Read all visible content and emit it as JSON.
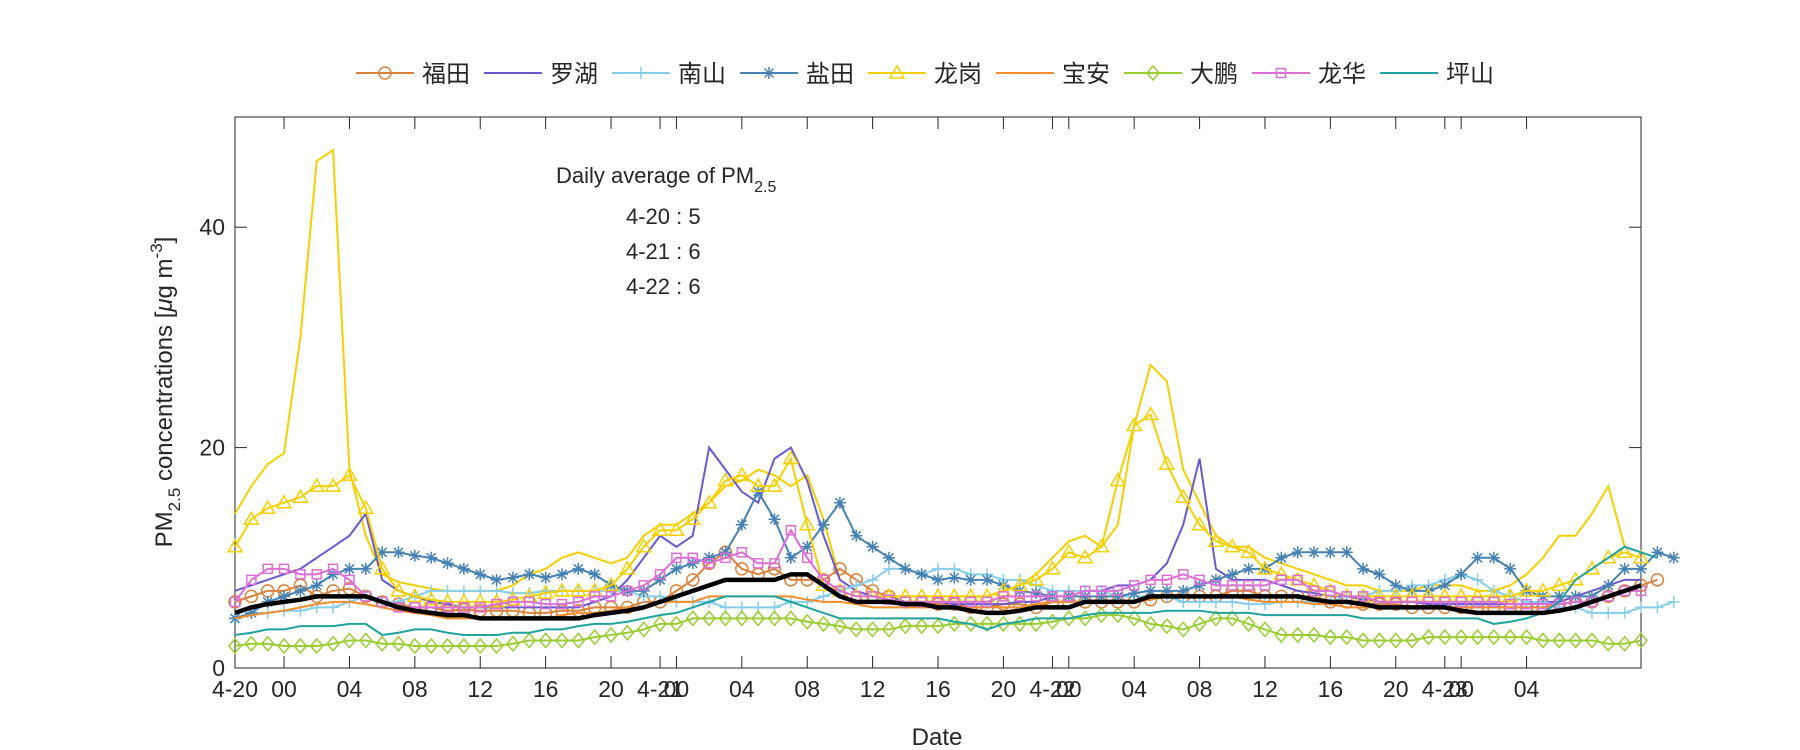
{
  "chart_data": {
    "type": "line",
    "xlabel": "Date",
    "ylabel": {
      "main": "PM",
      "sub": "2.5",
      "rest": " concentrations [",
      "mu": "μ",
      "unit": "g m",
      "sup": "-3",
      "end": "]"
    },
    "ylim": [
      0,
      50
    ],
    "yticks": [
      0,
      20,
      40
    ],
    "xlim": [
      0,
      76
    ],
    "xticks": [
      {
        "x": 0,
        "label": "4-20"
      },
      {
        "x": 3,
        "label": "00"
      },
      {
        "x": 7,
        "label": "04"
      },
      {
        "x": 11,
        "label": "08"
      },
      {
        "x": 15,
        "label": "12"
      },
      {
        "x": 19,
        "label": "16"
      },
      {
        "x": 23,
        "label": "20"
      },
      {
        "x": 26,
        "label": "4-21"
      },
      {
        "x": 27,
        "label": "00"
      },
      {
        "x": 31,
        "label": "04"
      },
      {
        "x": 35,
        "label": "08"
      },
      {
        "x": 39,
        "label": "12"
      },
      {
        "x": 43,
        "label": "16"
      },
      {
        "x": 47,
        "label": "20"
      },
      {
        "x": 50,
        "label": "4-22"
      },
      {
        "x": 51,
        "label": "00"
      },
      {
        "x": 55,
        "label": "04"
      },
      {
        "x": 59,
        "label": "08"
      },
      {
        "x": 63,
        "label": "12"
      },
      {
        "x": 67,
        "label": "16"
      },
      {
        "x": 71,
        "label": "20"
      },
      {
        "x": 74,
        "label": "4-23"
      },
      {
        "x": 75,
        "label": "00"
      },
      {
        "x": 79,
        "label": "04"
      }
    ],
    "grid": false,
    "legend_position": "top",
    "annotation": {
      "title": "Daily average of PM",
      "title_sub": "2.5",
      "lines": [
        "4-20 : 5",
        "4-21 : 6",
        "4-22 : 6"
      ]
    },
    "series": [
      {
        "name": "福田",
        "color": "#D9823B",
        "marker": "circle",
        "values": [
          6,
          6.5,
          7,
          7,
          7.5,
          6.5,
          7,
          7.2,
          6.5,
          6,
          5.8,
          5.5,
          5.5,
          5.2,
          5.3,
          5.2,
          5.2,
          5.2,
          5,
          5,
          5.2,
          5.2,
          5.5,
          5.5,
          5.5,
          6,
          6,
          7,
          8,
          9.5,
          10.5,
          9,
          8.5,
          9,
          8,
          8,
          8,
          9,
          8,
          7,
          6.5,
          6,
          6,
          5.8,
          5.8,
          5.5,
          5.5,
          5.8,
          5.8,
          5.5,
          6,
          6,
          6,
          6,
          6,
          6,
          6.2,
          6.5,
          6.5,
          6.5,
          6.5,
          7,
          7,
          6.5,
          6.5,
          6.5,
          6.5,
          6,
          6,
          5.8,
          5.8,
          5.8,
          5.5,
          5.5,
          5.5,
          5.5,
          5.5,
          5.5,
          5.5,
          5.5,
          5.5,
          5.8,
          6,
          6,
          6.5,
          7,
          7.5,
          8
        ]
      },
      {
        "name": "罗湖",
        "color": "#6A5ACD",
        "marker": "none",
        "values": [
          7,
          7.5,
          8,
          8.5,
          9,
          10,
          11,
          12,
          14,
          8,
          7,
          6.5,
          6,
          5.8,
          5.5,
          5.5,
          5.5,
          5.5,
          5.5,
          5.5,
          5.5,
          5.5,
          6,
          6.5,
          8,
          10,
          12,
          11,
          12,
          20,
          18,
          16,
          15,
          19,
          20,
          17,
          12,
          8,
          7,
          6.5,
          6.5,
          6,
          6,
          6,
          5.8,
          5.8,
          5.8,
          5.8,
          6,
          6,
          6.5,
          6.5,
          7,
          7,
          7.5,
          7.5,
          8,
          9.5,
          13,
          19,
          9,
          8,
          8,
          8,
          7.5,
          7,
          6.8,
          6.5,
          6.5,
          6.2,
          6,
          6,
          6,
          5.8,
          5.8,
          5.8,
          5.8,
          5.8,
          5.8,
          5.8,
          6,
          6,
          6.5,
          7,
          7.5,
          8,
          8
        ]
      },
      {
        "name": "南山",
        "color": "#87CEEB",
        "marker": "plus",
        "values": [
          4.5,
          5,
          5,
          5.2,
          5.2,
          5.5,
          5.5,
          6,
          6.5,
          6,
          6,
          6.5,
          7,
          7,
          7,
          7,
          7,
          6.8,
          6.8,
          7,
          7,
          7,
          7,
          7,
          7,
          6.5,
          6.5,
          6,
          6,
          6,
          5.5,
          5.5,
          5.5,
          5.5,
          6,
          6,
          6.5,
          7,
          7.5,
          8,
          9,
          9,
          8.5,
          9,
          9,
          8.5,
          8.5,
          8,
          8,
          7.5,
          7,
          7,
          7,
          7,
          6.5,
          6.5,
          6.5,
          6.5,
          6,
          6,
          6,
          6,
          5.8,
          5.8,
          6,
          6,
          6,
          6,
          6.5,
          6.5,
          7,
          7,
          7.5,
          7.5,
          8,
          8.5,
          8,
          7,
          6.5,
          6,
          6,
          5.5,
          5.5,
          5,
          5,
          5,
          5.5,
          5.5,
          6
        ]
      },
      {
        "name": "盐田",
        "color": "#4682B4",
        "marker": "asterisk",
        "values": [
          4.5,
          5,
          6,
          6.5,
          7,
          7.5,
          8.5,
          9,
          9,
          10.5,
          10.5,
          10.2,
          10,
          9.5,
          9,
          8.5,
          8,
          8.2,
          8.5,
          8.2,
          8.5,
          9,
          8.5,
          7.5,
          7,
          7,
          8,
          9,
          9.5,
          10,
          10.5,
          13,
          16,
          13.5,
          10,
          11,
          13,
          15,
          12,
          11,
          10,
          9,
          8.5,
          8,
          8.2,
          8,
          8,
          7.5,
          7,
          6.8,
          6.5,
          6.5,
          6.5,
          6.5,
          6.5,
          6.8,
          7,
          7,
          7,
          7.5,
          8,
          8.5,
          9,
          9,
          10,
          10.5,
          10.5,
          10.5,
          10.5,
          9,
          8.5,
          7.5,
          7,
          7,
          7.5,
          8.5,
          10,
          10,
          9,
          7,
          6.5,
          6.5,
          6.5,
          6.5,
          7.5,
          9,
          9,
          10.5,
          10
        ]
      },
      {
        "name": "龙岗",
        "color": "#F5D000",
        "marker": "triangle",
        "values": [
          11,
          13.5,
          14.5,
          15,
          15.5,
          16.5,
          16.5,
          17.5,
          14.5,
          9,
          7,
          6.5,
          6.2,
          6,
          6,
          6,
          6,
          6.2,
          6.5,
          6.8,
          7,
          7,
          7,
          7.5,
          9,
          11,
          12.5,
          12.5,
          13.5,
          15,
          17,
          17.5,
          16.5,
          16.5,
          19,
          13,
          7.5,
          7,
          6.5,
          6.5,
          6.5,
          6.5,
          6.5,
          6.5,
          6.5,
          6.5,
          6.5,
          7,
          7.5,
          8,
          9,
          10.5,
          10,
          11,
          17,
          22,
          23,
          18.5,
          15.5,
          13,
          11.5,
          11,
          10.5,
          9,
          8.5,
          8,
          7.5,
          7,
          6.5,
          6.5,
          6.5,
          6.5,
          6.5,
          6.5,
          6.5,
          6.5,
          6.5,
          6.5,
          6.5,
          7,
          7,
          7.5,
          8,
          9,
          10,
          10.5,
          10
        ]
      },
      {
        "name": "宝安",
        "color": "#F28E2B",
        "marker": "none",
        "values": [
          4.5,
          4.8,
          5,
          5.2,
          5.5,
          5.8,
          6,
          6,
          5.8,
          5.5,
          5.2,
          5,
          4.8,
          4.5,
          4.5,
          4.5,
          4.5,
          4.5,
          4.5,
          4.5,
          4.8,
          5,
          5,
          5.2,
          5.5,
          5.5,
          6,
          6,
          6,
          6.5,
          6.5,
          6.5,
          6.5,
          6.5,
          6.5,
          6.2,
          6,
          6,
          5.8,
          5.5,
          5.5,
          5.5,
          5.5,
          5.5,
          5.5,
          5.5,
          5.5,
          5.5,
          5.5,
          5.8,
          6,
          6,
          6,
          6,
          6,
          6,
          6.2,
          6.5,
          6.5,
          6.5,
          6.5,
          6.5,
          6.2,
          6,
          6,
          6,
          5.8,
          5.8,
          5.5,
          5.5,
          5.5,
          5.5,
          5.5,
          5.5,
          5.5,
          5.5,
          5.5,
          5.5,
          5.5,
          5.5,
          5.5,
          5.8,
          6,
          6,
          6.5,
          7,
          7.5
        ]
      },
      {
        "name": "大鹏",
        "color": "#9ACD32",
        "marker": "diamond",
        "values": [
          2,
          2.2,
          2.2,
          2,
          2,
          2,
          2.2,
          2.5,
          2.5,
          2.2,
          2.2,
          2,
          2,
          2,
          2,
          2,
          2,
          2.2,
          2.5,
          2.5,
          2.5,
          2.5,
          2.8,
          3,
          3.2,
          3.5,
          4,
          4,
          4.5,
          4.5,
          4.5,
          4.5,
          4.5,
          4.5,
          4.5,
          4.2,
          4,
          3.8,
          3.5,
          3.5,
          3.5,
          3.8,
          3.8,
          3.8,
          4,
          4,
          4,
          4,
          4,
          4,
          4.2,
          4.5,
          4.5,
          4.8,
          4.8,
          4.5,
          4,
          3.8,
          3.5,
          4,
          4.5,
          4.5,
          4,
          3.5,
          3,
          3,
          3,
          2.8,
          2.8,
          2.5,
          2.5,
          2.5,
          2.5,
          2.8,
          2.8,
          2.8,
          2.8,
          2.8,
          2.8,
          2.8,
          2.5,
          2.5,
          2.5,
          2.5,
          2.2,
          2.2,
          2.5
        ]
      },
      {
        "name": "龙华",
        "color": "#DA70D6",
        "marker": "square",
        "values": [
          6,
          8,
          9,
          9,
          8.5,
          8.5,
          9,
          8,
          6.5,
          6,
          5.5,
          5.5,
          5.5,
          5.5,
          5.5,
          5.5,
          5.8,
          6,
          6,
          5.8,
          5.8,
          6,
          6.5,
          6.5,
          7,
          7.5,
          8.5,
          10,
          10,
          9.5,
          10,
          10.5,
          9.5,
          9.5,
          12.5,
          10,
          8,
          7,
          6.5,
          6.5,
          6.2,
          6,
          6,
          6,
          6,
          6,
          6,
          6.5,
          6.5,
          6.5,
          6.5,
          6.5,
          7,
          7,
          7,
          7.5,
          8,
          8,
          8.5,
          8,
          7.5,
          7.5,
          7.5,
          7.5,
          8,
          8,
          7,
          7,
          6.5,
          6.5,
          6,
          6,
          6,
          6,
          6,
          6,
          6,
          6,
          5.8,
          5.8,
          5.8,
          5.8,
          6,
          6,
          6.5,
          7,
          7
        ]
      },
      {
        "name": "坪山",
        "color": "#20A39E",
        "marker": "none",
        "values": [
          3,
          3.2,
          3.5,
          3.5,
          3.8,
          3.8,
          3.8,
          4,
          4,
          3,
          3.2,
          3.5,
          3.5,
          3.2,
          3,
          3,
          3,
          3.2,
          3.2,
          3.5,
          3.5,
          3.8,
          4,
          4,
          4.2,
          4.5,
          4.8,
          5,
          5.5,
          6,
          6.5,
          6.5,
          6.5,
          6.5,
          6,
          5.5,
          5,
          4.5,
          4.5,
          4.5,
          4.5,
          4.5,
          4.5,
          4.5,
          4.2,
          4,
          3.5,
          4,
          4.2,
          4.5,
          4.5,
          4.5,
          4.8,
          5,
          5,
          5,
          5,
          5.2,
          5.2,
          5.2,
          5,
          5,
          5,
          4.8,
          4.8,
          4.8,
          4.8,
          4.8,
          4.8,
          4.5,
          4.5,
          4.5,
          4.5,
          4.5,
          4.5,
          4.5,
          4.5,
          4,
          4.2,
          4.5,
          5,
          6,
          8,
          9,
          10,
          11,
          10.5,
          10
        ]
      }
    ],
    "extra_unlabeled_lines": {
      "color": "#F5D000",
      "values": [
        14,
        16.5,
        18.5,
        19.5,
        30,
        46,
        47,
        18,
        12,
        8.5,
        7.8,
        7.5,
        7.2,
        7,
        7,
        7,
        7,
        7.5,
        8.5,
        9,
        10,
        10.5,
        10,
        9.5,
        10,
        12,
        13,
        13,
        14,
        15,
        16.5,
        17,
        18,
        17.5,
        16.5,
        17.5,
        13.5,
        8,
        7,
        6.5,
        6.5,
        6.5,
        6.5,
        6.5,
        6.5,
        6.5,
        6.5,
        7,
        7.5,
        8.5,
        10,
        11.5,
        12,
        11,
        13,
        22,
        27.5,
        26,
        18,
        15,
        12,
        11,
        11,
        10,
        9.5,
        9,
        8.5,
        8,
        7.5,
        7.5,
        7,
        7,
        7,
        7.5,
        7.5,
        7.5,
        7,
        7,
        7.5,
        8.5,
        10,
        12,
        12,
        14,
        16.5,
        11
      ]
    },
    "average_line": {
      "color": "#000000",
      "values": [
        5,
        5.5,
        5.8,
        6,
        6.2,
        6.5,
        6.5,
        6.5,
        6.5,
        6,
        5.5,
        5.2,
        5,
        4.8,
        4.8,
        4.5,
        4.5,
        4.5,
        4.5,
        4.5,
        4.5,
        4.5,
        4.8,
        5,
        5.2,
        5.5,
        6,
        6.5,
        7,
        7.5,
        8,
        8,
        8,
        8,
        8.5,
        8.5,
        7.5,
        6.5,
        6,
        6,
        6,
        5.8,
        5.8,
        5.5,
        5.5,
        5.2,
        5,
        5,
        5.2,
        5.5,
        5.5,
        5.5,
        6,
        6,
        6,
        6,
        6.5,
        6.5,
        6.5,
        6.5,
        6.5,
        6.5,
        6.5,
        6.5,
        6.5,
        6.5,
        6.2,
        6,
        6,
        5.8,
        5.5,
        5.5,
        5.5,
        5.5,
        5.5,
        5.2,
        5,
        5,
        5,
        5,
        5,
        5.2,
        5.5,
        6,
        6.5,
        7,
        7.5
      ]
    }
  }
}
